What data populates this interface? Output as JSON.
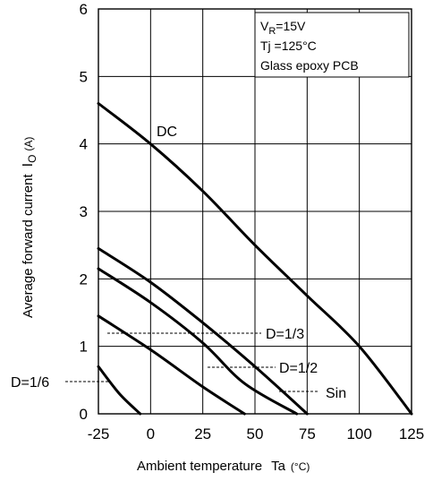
{
  "chart_data": {
    "type": "line",
    "xlabel": "Ambient temperature",
    "xlabel_symbol": "Ta",
    "xlabel_unit": "(°C)",
    "ylabel": "Average forward current",
    "ylabel_symbol": "I",
    "ylabel_subscript": "O",
    "ylabel_unit": "(A)",
    "xlim": [
      -25,
      125
    ],
    "ylim": [
      0,
      6
    ],
    "x_ticks": [
      "-25",
      "0",
      "25",
      "50",
      "75",
      "100",
      "125"
    ],
    "y_ticks": [
      "0",
      "1",
      "2",
      "3",
      "4",
      "5",
      "6"
    ],
    "grid": true,
    "conditions": {
      "line1_main": "V",
      "line1_sub": "R",
      "line1_rest": "=15V",
      "line2": "Tj =125°C",
      "line3": "Glass epoxy PCB"
    },
    "series": [
      {
        "name": "DC",
        "x": [
          -25,
          0,
          25,
          50,
          75,
          100,
          125
        ],
        "values": [
          4.6,
          4.0,
          3.3,
          2.5,
          1.75,
          1.0,
          0.0
        ]
      },
      {
        "name": "D=1/3",
        "x": [
          -25,
          0,
          25,
          50,
          75
        ],
        "values": [
          2.45,
          1.95,
          1.35,
          0.7,
          0.0
        ]
      },
      {
        "name": "D=1/2",
        "x": [
          -25,
          0,
          25,
          45,
          70
        ],
        "values": [
          2.15,
          1.65,
          1.05,
          0.45,
          0.0
        ]
      },
      {
        "name": "Sin",
        "x": [
          -25,
          0,
          25,
          45
        ],
        "values": [
          1.45,
          0.95,
          0.4,
          0.0
        ]
      },
      {
        "name": "D=1/6",
        "x": [
          -25,
          -15,
          -5
        ],
        "values": [
          0.7,
          0.3,
          0.0
        ]
      }
    ],
    "annotations": [
      {
        "text": "DC",
        "for": "DC"
      },
      {
        "text": "D=1/3",
        "for": "D=1/3"
      },
      {
        "text": "D=1/2",
        "for": "D=1/2"
      },
      {
        "text": "Sin",
        "for": "Sin"
      },
      {
        "text": "D=1/6",
        "for": "D=1/6"
      }
    ]
  }
}
